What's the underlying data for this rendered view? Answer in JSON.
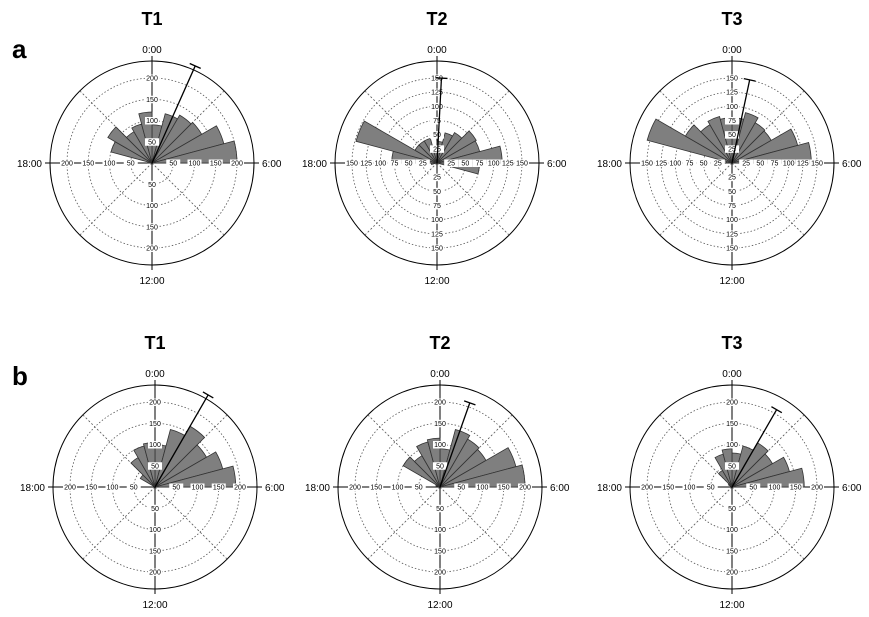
{
  "figure": {
    "row_labels": [
      "a",
      "b"
    ],
    "hour_labels": {
      "top": "0:00",
      "right": "6:00",
      "bottom": "12:00",
      "left": "18:00"
    }
  },
  "chart_data": [
    {
      "type": "rose",
      "row": "a",
      "title": "T1",
      "rmax": 200,
      "ticks": [
        "50",
        "100",
        "150",
        "200"
      ],
      "sectors_hours": [
        [
          0,
          1
        ],
        [
          1,
          2
        ],
        [
          2,
          3
        ],
        [
          3,
          4
        ],
        [
          4,
          5
        ],
        [
          5,
          6
        ],
        [
          18,
          19
        ],
        [
          19,
          20
        ],
        [
          20,
          21
        ],
        [
          21,
          22
        ],
        [
          22,
          23
        ],
        [
          23,
          24
        ]
      ],
      "values": [
        90,
        120,
        130,
        135,
        175,
        200,
        10,
        100,
        120,
        85,
        95,
        120
      ],
      "mean_hour": 1.6,
      "mean_length": 250
    },
    {
      "type": "rose",
      "row": "a",
      "title": "T2",
      "rmax": 150,
      "ticks": [
        "25",
        "50",
        "75",
        "100",
        "125",
        "150"
      ],
      "sectors_hours": [
        [
          0,
          1
        ],
        [
          1,
          2
        ],
        [
          2,
          3
        ],
        [
          3,
          4
        ],
        [
          4,
          5
        ],
        [
          5,
          6
        ],
        [
          6,
          7
        ],
        [
          17,
          18
        ],
        [
          18,
          19
        ],
        [
          19,
          20
        ],
        [
          20,
          21
        ],
        [
          21,
          22
        ],
        [
          22,
          23
        ],
        [
          23,
          24
        ]
      ],
      "values": [
        38,
        55,
        62,
        80,
        78,
        115,
        75,
        10,
        80,
        148,
        45,
        45,
        45,
        25
      ],
      "mean_hour": 0.2,
      "mean_length": 150
    },
    {
      "type": "rose",
      "row": "a",
      "title": "T3",
      "rmax": 150,
      "ticks": [
        "25",
        "50",
        "75",
        "100",
        "125",
        "150"
      ],
      "sectors_hours": [
        [
          0,
          1
        ],
        [
          1,
          2
        ],
        [
          2,
          3
        ],
        [
          3,
          4
        ],
        [
          4,
          5
        ],
        [
          5,
          6
        ],
        [
          18,
          19
        ],
        [
          19,
          20
        ],
        [
          20,
          21
        ],
        [
          21,
          22
        ],
        [
          22,
          23
        ],
        [
          23,
          24
        ]
      ],
      "values": [
        80,
        92,
        82,
        80,
        120,
        140,
        10,
        155,
        95,
        78,
        85,
        80
      ],
      "mean_hour": 0.8,
      "mean_length": 150
    },
    {
      "type": "rose",
      "row": "b",
      "title": "T1",
      "rmax": 200,
      "ticks": [
        "50",
        "100",
        "150",
        "200"
      ],
      "sectors_hours": [
        [
          0,
          1
        ],
        [
          1,
          2
        ],
        [
          2,
          3
        ],
        [
          3,
          4
        ],
        [
          4,
          5
        ],
        [
          5,
          6
        ],
        [
          20,
          21
        ],
        [
          21,
          22
        ],
        [
          22,
          23
        ],
        [
          23,
          24
        ]
      ],
      "values": [
        100,
        140,
        165,
        140,
        165,
        190,
        40,
        80,
        100,
        105
      ],
      "mean_hour": 2.0,
      "mean_length": 250
    },
    {
      "type": "rose",
      "row": "b",
      "title": "T2",
      "rmax": 200,
      "ticks": [
        "50",
        "100",
        "150",
        "200"
      ],
      "sectors_hours": [
        [
          0,
          1
        ],
        [
          1,
          2
        ],
        [
          2,
          3
        ],
        [
          3,
          4
        ],
        [
          4,
          5
        ],
        [
          5,
          6
        ],
        [
          19,
          20
        ],
        [
          20,
          21
        ],
        [
          21,
          22
        ],
        [
          22,
          23
        ],
        [
          23,
          24
        ]
      ],
      "values": [
        90,
        140,
        130,
        125,
        185,
        200,
        10,
        100,
        85,
        110,
        115
      ],
      "mean_hour": 1.3,
      "mean_length": 210
    },
    {
      "type": "rose",
      "row": "b",
      "title": "T3",
      "rmax": 200,
      "ticks": [
        "50",
        "100",
        "150",
        "200"
      ],
      "sectors_hours": [
        [
          0,
          1
        ],
        [
          1,
          2
        ],
        [
          2,
          3
        ],
        [
          3,
          4
        ],
        [
          4,
          5
        ],
        [
          5,
          6
        ],
        [
          20,
          21
        ],
        [
          21,
          22
        ],
        [
          22,
          23
        ],
        [
          23,
          24
        ]
      ],
      "values": [
        80,
        100,
        120,
        110,
        140,
        170,
        10,
        45,
        80,
        90
      ],
      "mean_hour": 2.0,
      "mean_length": 210
    }
  ]
}
